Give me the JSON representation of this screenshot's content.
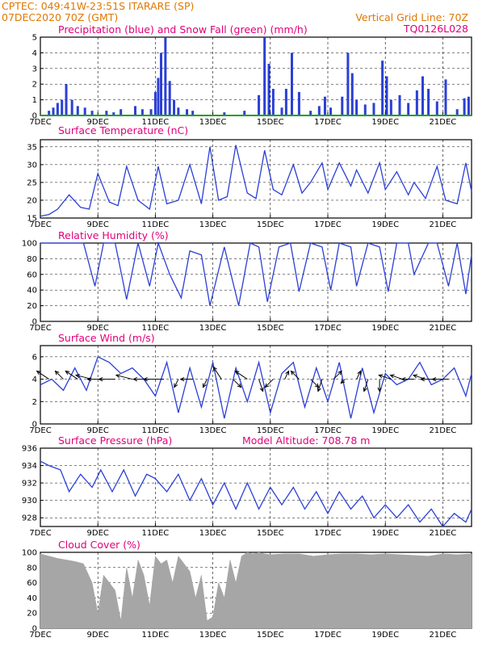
{
  "header": {
    "source_line": "CPTEC:   049:41W-23:51S   ITARARE (SP)",
    "date_line": "07DEC2020 70Z (GMT)",
    "grid_note": "Vertical Grid Line: 70Z",
    "code": "TQ0126L028"
  },
  "x_ticks": [
    "7DEC",
    "9DEC",
    "11DEC",
    "13DEC",
    "15DEC",
    "17DEC",
    "19DEC",
    "21DEC"
  ],
  "x_range_days": [
    7,
    22
  ],
  "colors": {
    "header": "#e07800",
    "panel_title": "#e0007a",
    "line": "#2b3fd6",
    "snow": "#1fa01f",
    "cloud": "#a6a6a6",
    "arrow": "#000000"
  },
  "chart_data": [
    {
      "type": "bar",
      "title": "Precipitation (blue) and Snow Fall (green) (mm/h)",
      "ylim": [
        0,
        5
      ],
      "yticks": [
        0,
        1,
        2,
        3,
        4,
        5
      ],
      "series": [
        {
          "name": "Precipitation",
          "x": [
            7.3,
            7.45,
            7.6,
            7.75,
            7.9,
            8.1,
            8.3,
            8.55,
            8.8,
            9.3,
            9.55,
            9.8,
            10.3,
            10.55,
            10.85,
            11.0,
            11.1,
            11.2,
            11.35,
            11.5,
            11.65,
            11.8,
            12.1,
            12.3,
            13.4,
            14.1,
            14.6,
            14.8,
            14.95,
            15.1,
            15.4,
            15.55,
            15.75,
            16.0,
            16.4,
            16.7,
            16.9,
            17.1,
            17.5,
            17.7,
            17.85,
            18.0,
            18.3,
            18.6,
            18.9,
            19.05,
            19.2,
            19.5,
            19.8,
            20.1,
            20.3,
            20.5,
            20.8,
            21.1,
            21.5,
            21.75,
            21.9
          ],
          "values": [
            0.3,
            0.5,
            0.8,
            1.0,
            2.0,
            1.0,
            0.6,
            0.5,
            0.3,
            0.3,
            0.2,
            0.4,
            0.6,
            0.4,
            0.4,
            1.5,
            2.4,
            4.0,
            5.0,
            2.2,
            1.0,
            0.5,
            0.4,
            0.3,
            0.2,
            0.3,
            1.3,
            5.0,
            3.3,
            1.7,
            0.5,
            1.7,
            4.0,
            1.5,
            0.3,
            0.6,
            1.2,
            0.5,
            1.2,
            4.0,
            2.7,
            1.0,
            0.7,
            0.8,
            3.5,
            2.5,
            1.0,
            1.3,
            0.8,
            1.6,
            2.5,
            1.7,
            0.9,
            2.3,
            0.4,
            1.1,
            1.2
          ]
        },
        {
          "name": "Snow Fall",
          "x": [
            7.0,
            22.0
          ],
          "values": [
            0,
            0
          ]
        }
      ]
    },
    {
      "type": "line",
      "title": "Surface Temperature (nC)",
      "ylim": [
        15,
        37
      ],
      "yticks": [
        15,
        20,
        25,
        30,
        35
      ],
      "x": [
        7.0,
        7.3,
        7.6,
        8.0,
        8.4,
        8.7,
        9.0,
        9.4,
        9.7,
        10.0,
        10.4,
        10.8,
        11.1,
        11.4,
        11.8,
        12.2,
        12.6,
        12.9,
        13.2,
        13.5,
        13.8,
        14.2,
        14.5,
        14.8,
        15.1,
        15.4,
        15.8,
        16.1,
        16.4,
        16.8,
        17.0,
        17.4,
        17.8,
        18.0,
        18.4,
        18.8,
        19.0,
        19.4,
        19.8,
        20.0,
        20.4,
        20.8,
        21.1,
        21.5,
        21.8,
        22.0
      ],
      "values": [
        15.5,
        16.0,
        17.5,
        21.5,
        18.0,
        17.5,
        27.5,
        19.5,
        18.5,
        29.5,
        20.0,
        17.5,
        29.5,
        19.0,
        20.0,
        30.0,
        19.0,
        35.0,
        20.0,
        21.0,
        35.5,
        22.0,
        20.5,
        34.0,
        23.0,
        21.5,
        30.0,
        22.0,
        25.0,
        30.5,
        23.0,
        30.5,
        24.0,
        28.5,
        22.0,
        30.5,
        23.0,
        28.0,
        21.5,
        25.0,
        20.5,
        29.5,
        20.0,
        19.0,
        30.5,
        22.5
      ]
    },
    {
      "type": "line",
      "title": "Relative Humidity (%)",
      "ylim": [
        0,
        100
      ],
      "yticks": [
        0,
        20,
        40,
        60,
        80,
        100
      ],
      "x": [
        7.0,
        7.5,
        8.0,
        8.5,
        8.9,
        9.2,
        9.6,
        10.0,
        10.4,
        10.8,
        11.1,
        11.5,
        11.9,
        12.2,
        12.6,
        12.9,
        13.4,
        13.9,
        14.3,
        14.6,
        14.9,
        15.3,
        15.7,
        16.0,
        16.4,
        16.8,
        17.1,
        17.4,
        17.8,
        18.0,
        18.4,
        18.8,
        19.1,
        19.4,
        19.8,
        20.0,
        20.5,
        20.8,
        21.2,
        21.5,
        21.8,
        22.0
      ],
      "values": [
        100,
        100,
        100,
        100,
        45,
        100,
        100,
        28,
        100,
        45,
        100,
        60,
        30,
        90,
        85,
        20,
        95,
        20,
        100,
        95,
        25,
        95,
        100,
        38,
        100,
        95,
        40,
        100,
        95,
        45,
        100,
        95,
        38,
        100,
        100,
        60,
        100,
        100,
        45,
        100,
        35,
        85
      ]
    },
    {
      "type": "line",
      "title": "Surface Wind (m/s)",
      "ylim": [
        0,
        7
      ],
      "yticks": [
        0,
        2,
        4,
        6
      ],
      "x": [
        7.0,
        7.4,
        7.8,
        8.2,
        8.6,
        9.0,
        9.4,
        9.8,
        10.2,
        10.6,
        11.0,
        11.4,
        11.8,
        12.2,
        12.6,
        13.0,
        13.4,
        13.8,
        14.2,
        14.6,
        15.0,
        15.4,
        15.8,
        16.2,
        16.6,
        17.0,
        17.4,
        17.8,
        18.2,
        18.6,
        19.0,
        19.4,
        19.8,
        20.2,
        20.6,
        21.0,
        21.4,
        21.8,
        22.0
      ],
      "values": [
        3.5,
        4.0,
        3.0,
        5.0,
        3.0,
        6.0,
        5.5,
        4.5,
        5.0,
        4.0,
        2.5,
        5.5,
        1.0,
        5.0,
        1.5,
        5.5,
        0.5,
        5.0,
        2.0,
        5.5,
        1.0,
        4.5,
        5.5,
        1.5,
        5.0,
        2.0,
        5.5,
        0.5,
        5.0,
        1.0,
        4.5,
        3.5,
        4.0,
        5.5,
        3.5,
        4.0,
        5.0,
        2.5,
        4.5
      ],
      "wind_vectors": {
        "x": [
          7.3,
          7.8,
          8.3,
          8.8,
          9.2,
          9.6,
          10.2,
          10.8,
          11.3,
          11.8,
          12.3,
          12.8,
          13.3,
          13.7,
          14.2,
          14.6,
          15.1,
          15.5,
          16.0,
          16.4,
          16.8,
          17.2,
          17.6,
          18.0,
          18.4,
          18.8,
          19.2,
          19.6,
          20.0,
          20.4,
          20.8,
          21.2
        ],
        "u": [
          -3,
          -2,
          -3,
          -4,
          -4,
          -4,
          -4,
          -4,
          -5,
          -1,
          -3,
          -1,
          -2,
          2,
          -3,
          1,
          -2,
          1,
          -2,
          2,
          -1,
          2,
          -1,
          1,
          -1,
          0,
          -3,
          -3,
          -3,
          -3,
          -4,
          -4
        ],
        "dir_v": [
          2,
          2,
          2,
          1,
          0,
          0,
          1,
          0,
          0,
          -2,
          0,
          -2,
          3,
          -2,
          2,
          -3,
          -2,
          2,
          2,
          -2,
          -3,
          2,
          -1,
          2,
          -3,
          -3,
          1,
          1,
          0,
          1,
          0,
          0
        ]
      }
    },
    {
      "type": "line",
      "title": "Surface Pressure (hPa)",
      "annotation": "Model Altitude: 708.78 m",
      "ylim": [
        927,
        936
      ],
      "yticks": [
        928,
        930,
        932,
        934,
        936
      ],
      "x": [
        7.0,
        7.3,
        7.7,
        8.0,
        8.4,
        8.8,
        9.1,
        9.5,
        9.9,
        10.3,
        10.7,
        11.0,
        11.4,
        11.8,
        12.2,
        12.6,
        13.0,
        13.4,
        13.8,
        14.2,
        14.6,
        15.0,
        15.4,
        15.8,
        16.2,
        16.6,
        17.0,
        17.4,
        17.8,
        18.2,
        18.6,
        19.0,
        19.4,
        19.8,
        20.2,
        20.6,
        21.0,
        21.4,
        21.8,
        22.0
      ],
      "values": [
        934.5,
        934.0,
        933.5,
        931.0,
        933.0,
        931.5,
        933.5,
        931.0,
        933.5,
        930.5,
        933.0,
        932.5,
        931.0,
        933.0,
        930.0,
        932.5,
        929.5,
        932.0,
        929.0,
        932.0,
        929.0,
        931.5,
        929.5,
        931.5,
        929.0,
        931.0,
        928.5,
        931.0,
        929.0,
        930.5,
        928.0,
        929.5,
        928.0,
        929.5,
        927.5,
        929.0,
        927.0,
        928.5,
        927.5,
        929.0
      ]
    },
    {
      "type": "bar",
      "title": "Cloud Cover (%)",
      "ylim": [
        0,
        100
      ],
      "yticks": [
        0,
        20,
        40,
        60,
        80,
        100
      ],
      "x": [
        7.0,
        7.3,
        7.6,
        7.9,
        8.2,
        8.5,
        8.8,
        9.0,
        9.2,
        9.4,
        9.6,
        9.8,
        10.0,
        10.2,
        10.4,
        10.6,
        10.8,
        11.0,
        11.2,
        11.4,
        11.6,
        11.8,
        12.0,
        12.2,
        12.4,
        12.6,
        12.8,
        13.0,
        13.2,
        13.4,
        13.6,
        13.8,
        14.0,
        14.2,
        14.4,
        14.6,
        14.8,
        15.0,
        15.5,
        16.0,
        16.5,
        17.0,
        17.5,
        18.0,
        18.5,
        19.0,
        19.5,
        20.0,
        20.5,
        21.0,
        21.5,
        22.0
      ],
      "values": [
        98,
        95,
        92,
        90,
        88,
        85,
        60,
        20,
        70,
        60,
        50,
        10,
        80,
        40,
        90,
        70,
        30,
        95,
        85,
        90,
        60,
        95,
        85,
        75,
        40,
        70,
        10,
        15,
        60,
        40,
        90,
        60,
        95,
        100,
        98,
        100,
        98,
        97,
        98,
        98,
        95,
        97,
        98,
        98,
        97,
        98,
        97,
        96,
        95,
        98,
        97,
        98
      ]
    }
  ]
}
